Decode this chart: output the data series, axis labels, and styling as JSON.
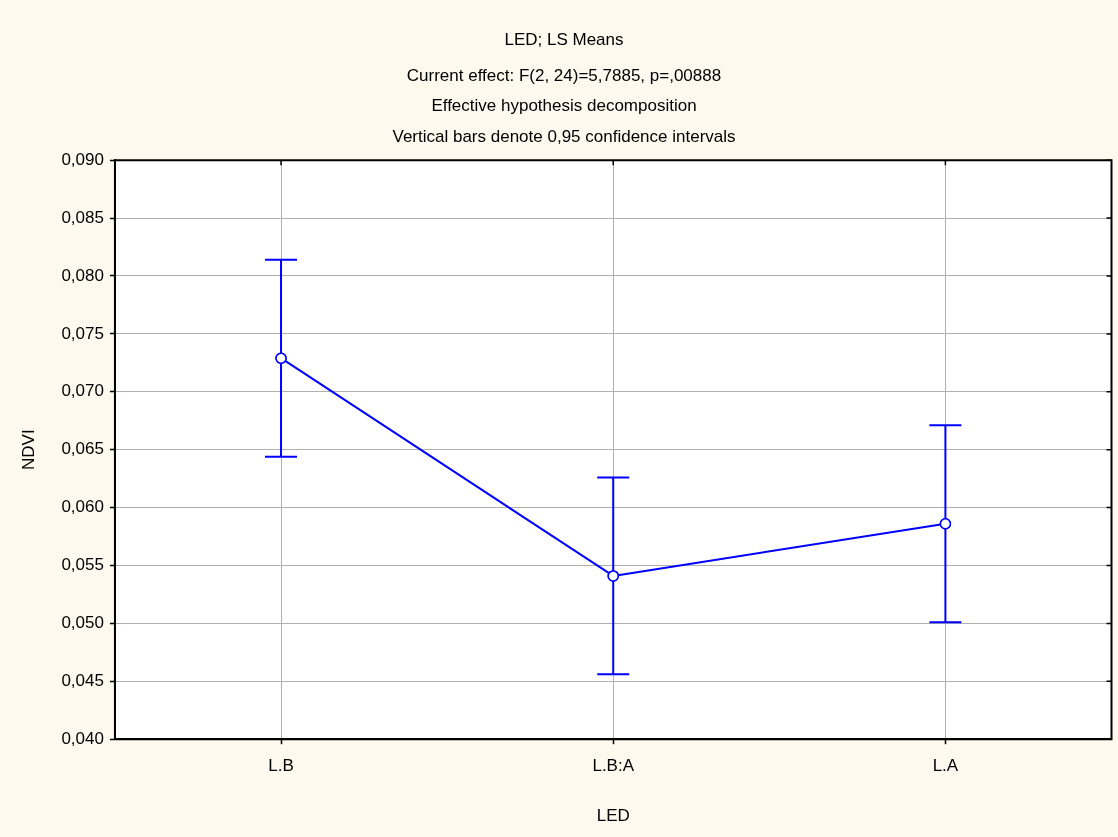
{
  "chart_data": {
    "type": "line",
    "title": "LED; LS Means",
    "subtitle": "Current effect: F(2, 24)=5,7885, p=,00888",
    "annotations": [
      "Effective hypothesis decomposition",
      "Vertical bars denote 0,95 confidence intervals"
    ],
    "xlabel": "LED",
    "ylabel": "NDVI",
    "categories": [
      "L.B",
      "L.B:A",
      "L.A"
    ],
    "series": [
      {
        "color": "#0000ff",
        "values": [
          0.0729,
          0.0541,
          0.0586
        ],
        "errors": [
          0.0085,
          0.0085,
          0.0085
        ]
      }
    ],
    "ylim": [
      0.04,
      0.09
    ],
    "yticks": [
      {
        "value": 0.04,
        "label": "0,040"
      },
      {
        "value": 0.045,
        "label": "0,045"
      },
      {
        "value": 0.05,
        "label": "0,050"
      },
      {
        "value": 0.055,
        "label": "0,055"
      },
      {
        "value": 0.06,
        "label": "0,060"
      },
      {
        "value": 0.065,
        "label": "0,065"
      },
      {
        "value": 0.07,
        "label": "0,070"
      },
      {
        "value": 0.075,
        "label": "0,075"
      },
      {
        "value": 0.08,
        "label": "0,080"
      },
      {
        "value": 0.085,
        "label": "0,085"
      },
      {
        "value": 0.09,
        "label": "0,090"
      }
    ],
    "grid": true,
    "legend": false,
    "marker": "circle",
    "line_style": "solid"
  }
}
